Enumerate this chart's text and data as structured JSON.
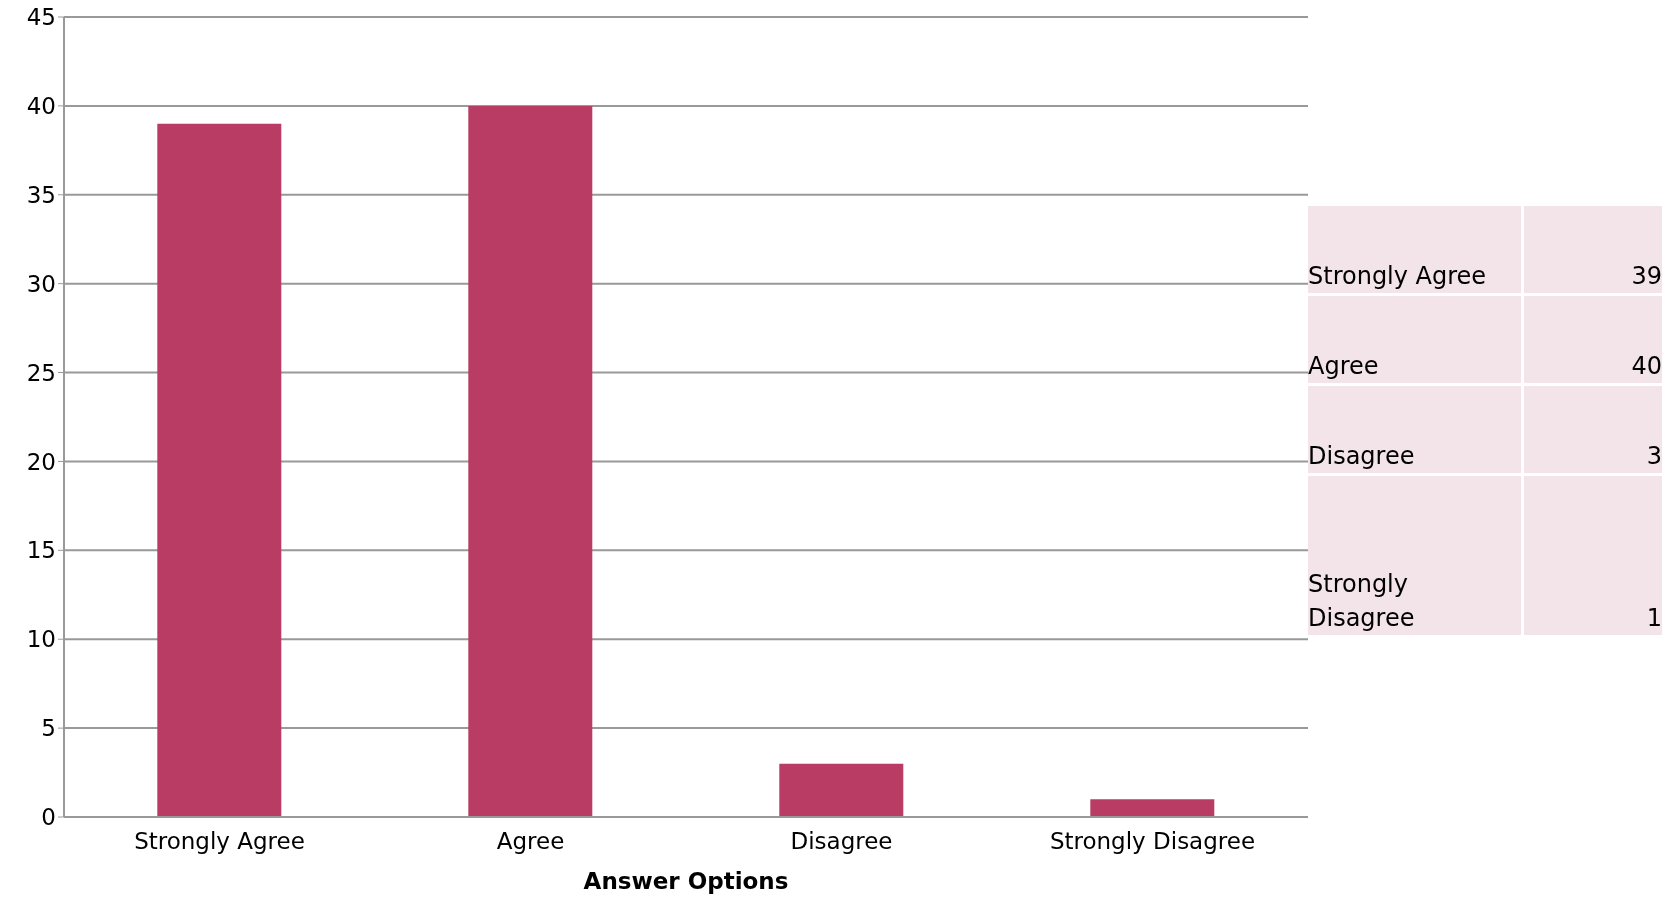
{
  "chart_data": [
    {
      "type": "bar",
      "xlabel": "Answer Options",
      "categories": [
        "Strongly Agree",
        "Agree",
        "Disagree",
        "Strongly Disagree"
      ],
      "values": [
        39,
        40,
        3,
        1
      ],
      "color": "#b83c64",
      "ylim": [
        0,
        45
      ],
      "yticks": [
        0,
        5,
        10,
        15,
        20,
        25,
        30,
        35,
        40,
        45
      ],
      "grid": "y",
      "legend": false
    },
    {
      "type": "other",
      "categories": [
        "Strongly Agree",
        "Agree",
        "Disagree",
        "Strongly Disagree"
      ],
      "values": [
        39,
        40,
        3,
        1
      ],
      "color": "#f2e4e8",
      "data_labels": true
    }
  ]
}
